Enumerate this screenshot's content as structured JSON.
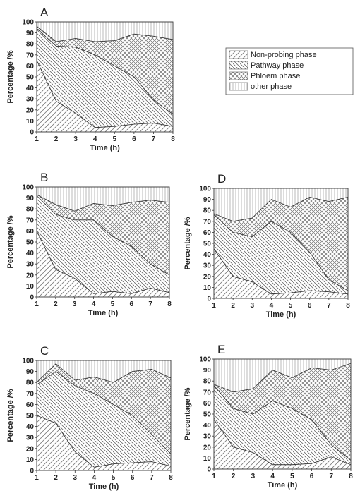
{
  "legend": {
    "items": [
      {
        "label": "Non-probing phase",
        "pattern": "p-np"
      },
      {
        "label": "Pathway phase",
        "pattern": "p-pw"
      },
      {
        "label": "Phloem phase",
        "pattern": "p-ph"
      },
      {
        "label": "other phase",
        "pattern": "p-ot"
      }
    ]
  },
  "chart_data": [
    {
      "panel": "A",
      "type": "area",
      "stacked": true,
      "xlabel": "Time (h)",
      "ylabel": "Percentage /%",
      "x": [
        1,
        2,
        3,
        4,
        5,
        6,
        7,
        8
      ],
      "xlim": [
        1,
        8
      ],
      "ylim": [
        0,
        100
      ],
      "xticks": [
        1,
        2,
        3,
        4,
        5,
        6,
        7,
        8
      ],
      "yticks": [
        0,
        10,
        20,
        30,
        40,
        50,
        60,
        70,
        80,
        90,
        100
      ],
      "boundaries": [
        [
          65,
          28,
          17,
          4,
          5,
          7,
          8,
          5
        ],
        [
          94,
          78,
          77,
          70,
          60,
          50,
          29,
          16
        ],
        [
          96,
          82,
          85,
          82,
          83,
          89,
          87,
          84
        ]
      ]
    },
    {
      "panel": "B",
      "type": "area",
      "stacked": true,
      "xlabel": "Time (h)",
      "ylabel": "Percentage /%",
      "x": [
        1,
        2,
        3,
        4,
        5,
        6,
        7,
        8
      ],
      "xlim": [
        1,
        8
      ],
      "ylim": [
        0,
        100
      ],
      "xticks": [
        1,
        2,
        3,
        4,
        5,
        6,
        7,
        8
      ],
      "yticks": [
        0,
        10,
        20,
        30,
        40,
        50,
        60,
        70,
        80,
        90,
        100
      ],
      "boundaries": [
        [
          60,
          25,
          17,
          3,
          5,
          3,
          8,
          4
        ],
        [
          92,
          75,
          70,
          70,
          55,
          46,
          30,
          20
        ],
        [
          93,
          84,
          78,
          85,
          83,
          86,
          88,
          86
        ]
      ]
    },
    {
      "panel": "C",
      "type": "area",
      "stacked": true,
      "xlabel": "Time (h)",
      "ylabel": "Percentage /%",
      "x": [
        1,
        2,
        3,
        4,
        5,
        6,
        7,
        8
      ],
      "xlim": [
        1,
        8
      ],
      "ylim": [
        0,
        100
      ],
      "xticks": [
        1,
        2,
        3,
        4,
        5,
        6,
        7,
        8
      ],
      "yticks": [
        0,
        10,
        20,
        30,
        40,
        50,
        60,
        70,
        80,
        90,
        100
      ],
      "boundaries": [
        [
          50,
          43,
          17,
          3,
          6,
          7,
          8,
          4
        ],
        [
          78,
          90,
          77,
          70,
          60,
          50,
          33,
          15
        ],
        [
          80,
          97,
          82,
          85,
          80,
          90,
          92,
          84
        ]
      ]
    },
    {
      "panel": "D",
      "type": "area",
      "stacked": true,
      "xlabel": "Time (h)",
      "ylabel": "Percentage /%",
      "x": [
        1,
        2,
        3,
        4,
        5,
        6,
        7,
        8
      ],
      "xlim": [
        1,
        8
      ],
      "ylim": [
        0,
        100
      ],
      "xticks": [
        1,
        2,
        3,
        4,
        5,
        6,
        7,
        8
      ],
      "yticks": [
        0,
        10,
        20,
        30,
        40,
        50,
        60,
        70,
        80,
        90,
        100
      ],
      "boundaries": [
        [
          45,
          20,
          15,
          4,
          5,
          7,
          6,
          4
        ],
        [
          76,
          60,
          56,
          70,
          60,
          42,
          17,
          7
        ],
        [
          77,
          70,
          73,
          90,
          83,
          92,
          88,
          92
        ]
      ]
    },
    {
      "panel": "E",
      "type": "area",
      "stacked": true,
      "xlabel": "Time (h)",
      "ylabel": "Percentage /%",
      "x": [
        1,
        2,
        3,
        4,
        5,
        6,
        7,
        8
      ],
      "xlim": [
        1,
        8
      ],
      "ylim": [
        0,
        100
      ],
      "xticks": [
        1,
        2,
        3,
        4,
        5,
        6,
        7,
        8
      ],
      "yticks": [
        0,
        10,
        20,
        30,
        40,
        50,
        60,
        70,
        80,
        90,
        100
      ],
      "boundaries": [
        [
          45,
          20,
          15,
          4,
          4,
          5,
          11,
          4
        ],
        [
          76,
          55,
          50,
          62,
          55,
          45,
          22,
          8
        ],
        [
          77,
          70,
          73,
          90,
          83,
          92,
          90,
          96
        ]
      ]
    }
  ]
}
